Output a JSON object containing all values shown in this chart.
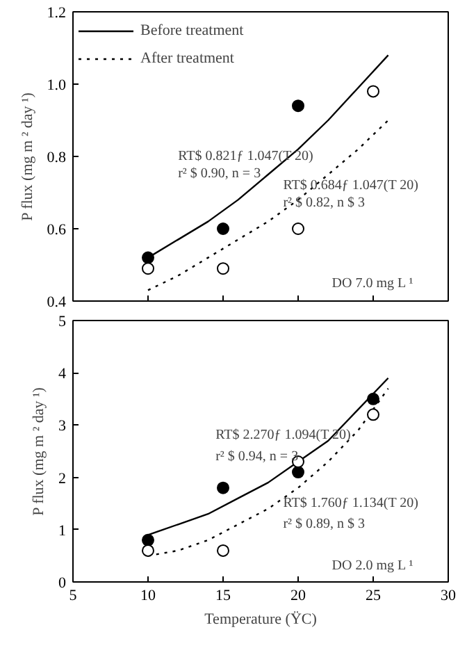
{
  "chart_data": [
    {
      "type": "scatter",
      "ylabel": "P flux (mg m ² day ¹)",
      "xlim": [
        5,
        30
      ],
      "xticks": [
        5,
        10,
        15,
        20,
        25,
        30
      ],
      "ylim": [
        0.4,
        1.2
      ],
      "yticks": [
        {
          "value": 0.4,
          "label": "0.4"
        },
        {
          "value": 0.6,
          "label": "0.6"
        },
        {
          "value": 0.8,
          "label": "0.8"
        },
        {
          "value": 1.0,
          "label": "1.0"
        },
        {
          "value": 1.2,
          "label": "1.2"
        }
      ],
      "tick_labels": "y",
      "grid": false,
      "legend": "top left",
      "series": [
        {
          "name": "Before treatment",
          "type": "line",
          "line_style": "solid",
          "color": "#000000",
          "x": [
            10,
            12,
            14,
            16,
            18,
            20,
            22,
            24,
            26
          ],
          "values": [
            0.52,
            0.57,
            0.62,
            0.68,
            0.75,
            0.82,
            0.9,
            0.99,
            1.08
          ]
        },
        {
          "name": "After treatment",
          "type": "line",
          "line_style": "dotted",
          "color": "#000000",
          "x": [
            10,
            12,
            14,
            16,
            18,
            20,
            22,
            24,
            26
          ],
          "values": [
            0.43,
            0.47,
            0.52,
            0.57,
            0.62,
            0.68,
            0.75,
            0.82,
            0.9
          ]
        },
        {
          "marker": "circle",
          "color": "#000000",
          "x": [
            10,
            15,
            20
          ],
          "values": [
            0.52,
            0.6,
            0.94
          ]
        },
        {
          "marker": "circle",
          "color": "#ffffff",
          "x": [
            10,
            15,
            20,
            25
          ],
          "values": [
            0.49,
            0.49,
            0.6,
            0.98
          ]
        }
      ],
      "annotations": [
        "RT$ 0.821ƒ 1.047(T 20)",
        "r² $ 0.90, n = 3",
        "RT$ 0.684ƒ 1.047(T 20)",
        "r² $ 0.82, n $ 3",
        "DO 7.0 mg L ¹"
      ]
    },
    {
      "type": "scatter",
      "xlabel": "Temperature (ŸC)",
      "ylabel": "P flux (mg m ² day ¹)",
      "xlim": [
        5,
        30
      ],
      "xticks": [
        5,
        10,
        15,
        20,
        25,
        30
      ],
      "ylim": [
        0,
        5
      ],
      "yticks": [
        0,
        1,
        2,
        3,
        4,
        5
      ],
      "grid": false,
      "series": [
        {
          "type": "line",
          "line_style": "solid",
          "color": "#000000",
          "x": [
            10,
            12,
            14,
            16,
            18,
            20,
            22,
            24,
            26
          ],
          "values": [
            0.9,
            1.1,
            1.3,
            1.6,
            1.9,
            2.3,
            2.7,
            3.3,
            3.9
          ]
        },
        {
          "type": "line",
          "line_style": "dotted",
          "color": "#000000",
          "x": [
            10,
            12,
            14,
            16,
            18,
            20,
            22,
            24,
            26
          ],
          "values": [
            0.5,
            0.6,
            0.8,
            1.1,
            1.4,
            1.8,
            2.3,
            2.9,
            3.7
          ]
        },
        {
          "marker": "circle",
          "color": "#000000",
          "x": [
            10,
            15,
            20,
            25
          ],
          "values": [
            0.8,
            1.8,
            2.1,
            3.5
          ]
        },
        {
          "marker": "circle",
          "color": "#ffffff",
          "x": [
            10,
            15,
            20,
            25
          ],
          "values": [
            0.6,
            0.6,
            2.3,
            3.2
          ]
        }
      ],
      "annotations": [
        "RT$ 2.270ƒ 1.094(T 20)",
        "r² $ 0.94, n = 3",
        "RT$ 1.760ƒ 1.134(T 20)",
        "r² $ 0.89, n $ 3",
        "DO 2.0 mg L ¹"
      ]
    }
  ]
}
